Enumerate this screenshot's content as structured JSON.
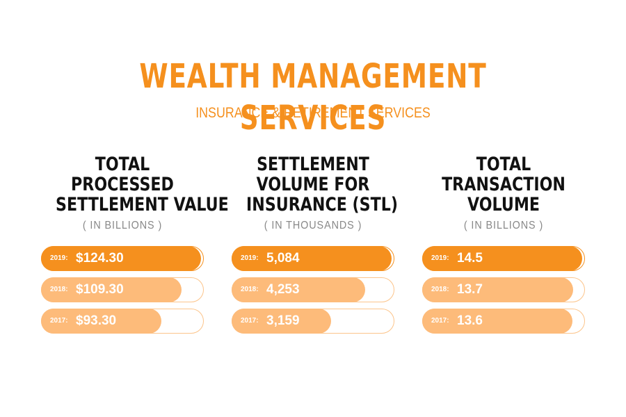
{
  "title": "WEALTH MANAGEMENT SERVICES",
  "subtitle": "INSURANCE & RETIREMENT SERVICES",
  "colors": {
    "primary": "#F5901E",
    "secondary": "#FDBB7A",
    "outline": "#FCC48A"
  },
  "chart_data": [
    {
      "type": "bar",
      "title_lines": [
        "TOTAL",
        "PROCESSED",
        "SETTLEMENT VALUE"
      ],
      "unit": "( IN BILLIONS )",
      "categories": [
        "2019:",
        "2018:",
        "2017:"
      ],
      "values": [
        124.3,
        109.3,
        93.3
      ],
      "labels": [
        "$124.30",
        "$109.30",
        "$93.30"
      ]
    },
    {
      "type": "bar",
      "title_lines": [
        "SETTLEMENT",
        "VOLUME FOR",
        "INSURANCE (STL)"
      ],
      "unit": "( IN THOUSANDS )",
      "categories": [
        "2019:",
        "2018:",
        "2017:"
      ],
      "values": [
        5084,
        4253,
        3159
      ],
      "labels": [
        "5,084",
        "4,253",
        "3,159"
      ]
    },
    {
      "type": "bar",
      "title_lines": [
        "TOTAL",
        "TRANSACTION",
        "VOLUME"
      ],
      "unit": "( IN BILLIONS )",
      "categories": [
        "2019:",
        "2018:",
        "2017:"
      ],
      "values": [
        14.5,
        13.7,
        13.6
      ],
      "labels": [
        "14.5",
        "13.7",
        "13.6"
      ]
    }
  ]
}
